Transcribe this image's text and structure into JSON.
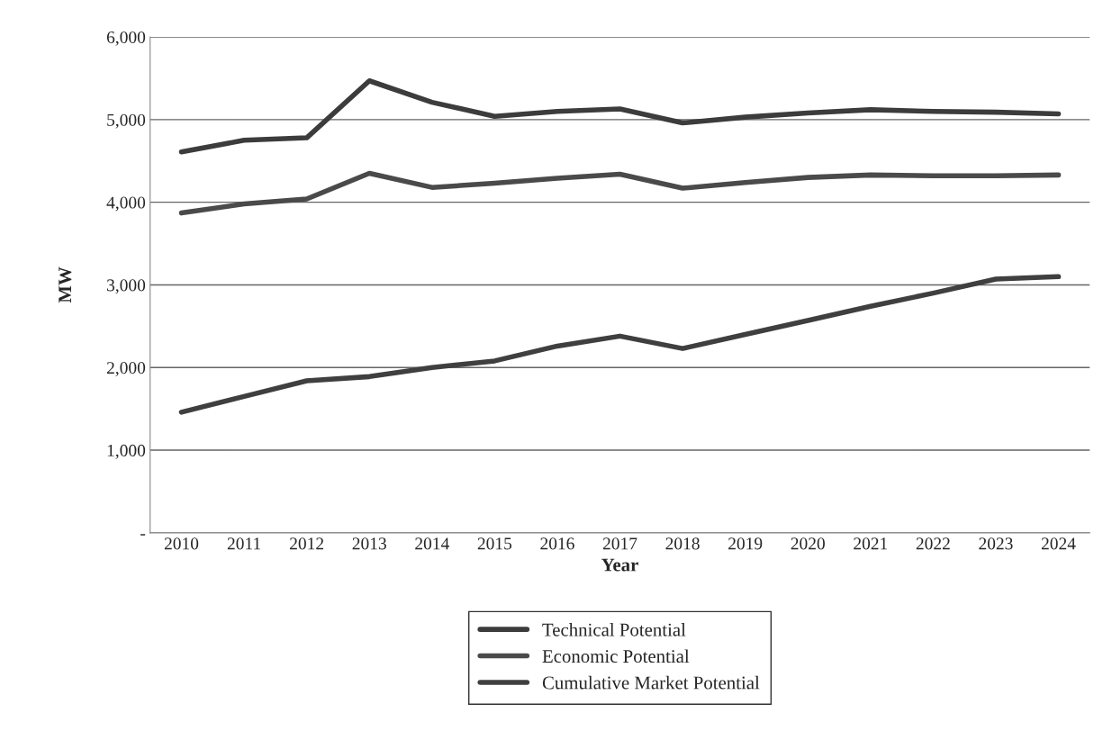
{
  "chart_data": {
    "type": "line",
    "xlabel": "Year",
    "ylabel": "MW",
    "categories": [
      "2010",
      "2011",
      "2012",
      "2013",
      "2014",
      "2015",
      "2016",
      "2017",
      "2018",
      "2019",
      "2020",
      "2021",
      "2022",
      "2023",
      "2024"
    ],
    "series": [
      {
        "name": "Technical Potential",
        "color": "#3c3c3c",
        "values": [
          4610,
          4750,
          4780,
          5470,
          5210,
          5040,
          5100,
          5130,
          4960,
          5030,
          5080,
          5120,
          5100,
          5090,
          5070
        ]
      },
      {
        "name": "Economic Potential",
        "color": "#4a4a4a",
        "values": [
          3870,
          3980,
          4040,
          4350,
          4180,
          4230,
          4290,
          4340,
          4170,
          4240,
          4300,
          4330,
          4320,
          4320,
          4330
        ]
      },
      {
        "name": "Cumulative Market Potential",
        "color": "#3f3f3f",
        "values": [
          1460,
          1650,
          1840,
          1890,
          2000,
          2080,
          2260,
          2380,
          2230,
          2400,
          2570,
          2740,
          2900,
          3070,
          3100
        ]
      }
    ],
    "ylim": [
      0,
      6000
    ],
    "yticks": [
      {
        "value": 0,
        "label": "-"
      },
      {
        "value": 1000,
        "label": "1,000"
      },
      {
        "value": 2000,
        "label": "2,000"
      },
      {
        "value": 3000,
        "label": "3,000"
      },
      {
        "value": 4000,
        "label": "4,000"
      },
      {
        "value": 5000,
        "label": "5,000"
      },
      {
        "value": 6000,
        "label": "6,000"
      }
    ],
    "grid": "y",
    "legend": "bottom",
    "marker": "none",
    "line_style": "solid"
  }
}
